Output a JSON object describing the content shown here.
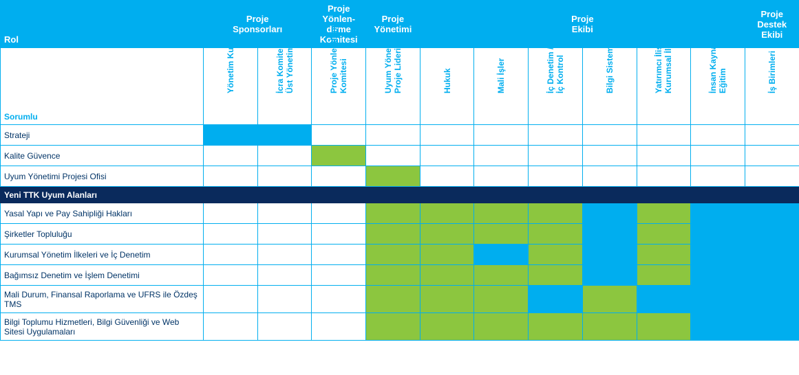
{
  "colors": {
    "header_bg": "#00aeef",
    "header_fg": "#ffffff",
    "subheader_fg": "#00aeef",
    "border": "#00aeef",
    "section_bg": "#0a2a5c",
    "section_fg": "#ffffff",
    "body_fg": "#003366",
    "fill_blue": "#00aeef",
    "fill_green": "#8cc63f",
    "fill_none": "#ffffff"
  },
  "header": {
    "rol": "Rol",
    "groups": [
      {
        "label": "Proje\nSponsorları",
        "span": 2
      },
      {
        "label": "Proje\nYönlen-\ndirme\nKomitesi",
        "span": 1
      },
      {
        "label": "Proje\nYönetimi",
        "span": 1
      },
      {
        "label": "Proje\nEkibi",
        "span": 6
      },
      {
        "label": "Proje\nDestek\nEkibi",
        "span": 1
      }
    ],
    "sorumlu": "Sorumlu",
    "columns": [
      "Yönetim Kurulu",
      "İcra Komitesi /\nÜst Yönetim",
      "Proje Yönlendirme\nKomitesi",
      "Uyum Yönetimi\nProje Lideri",
      "Hukuk",
      "Mali İşler",
      "İç Denetim /\nİç Kontrol",
      "Bilgi Sistemleri",
      "Yatırımcı İlişkileri/\nKurumsal İletişim",
      "İnsan Kaynakları/\nEğitim",
      "İş Birimleri"
    ]
  },
  "rows": [
    {
      "label": "Strateji",
      "cells": [
        "blue",
        "blue",
        "",
        "",
        "",
        "",
        "",
        "",
        "",
        "",
        ""
      ]
    },
    {
      "label": "Kalite Güvence",
      "cells": [
        "",
        "",
        "green",
        "",
        "",
        "",
        "",
        "",
        "",
        "",
        ""
      ]
    },
    {
      "label": "Uyum Yönetimi Projesi Ofisi",
      "cells": [
        "",
        "",
        "",
        "green",
        "",
        "",
        "",
        "",
        "",
        "",
        ""
      ]
    }
  ],
  "section_label": "Yeni TTK Uyum Alanları",
  "rows2": [
    {
      "label": "Yasal Yapı ve Pay Sahipliği Hakları",
      "cells": [
        "",
        "",
        "",
        "green",
        "green",
        "green",
        "green",
        "blue",
        "green",
        "blue",
        "blue"
      ]
    },
    {
      "label": "Şirketler Topluluğu",
      "cells": [
        "",
        "",
        "",
        "green",
        "green",
        "green",
        "green",
        "blue",
        "green",
        "blue",
        "blue"
      ]
    },
    {
      "label": "Kurumsal Yönetim İlkeleri ve İç Denetim",
      "cells": [
        "",
        "",
        "",
        "green",
        "green",
        "blue",
        "green",
        "blue",
        "green",
        "blue",
        "blue"
      ]
    },
    {
      "label": "Bağımsız Denetim ve İşlem Denetimi",
      "cells": [
        "",
        "",
        "",
        "green",
        "green",
        "green",
        "green",
        "blue",
        "green",
        "blue",
        "blue"
      ]
    },
    {
      "label": "Mali Durum, Finansal Raporlama ve UFRS ile Özdeş TMS",
      "cells": [
        "",
        "",
        "",
        "green",
        "green",
        "green",
        "blue",
        "green",
        "blue",
        "blue",
        "blue"
      ],
      "tall": true
    },
    {
      "label": "Bilgi Toplumu Hizmetleri, Bilgi Güvenliği ve Web Sitesi Uygulamaları",
      "cells": [
        "",
        "",
        "",
        "green",
        "green",
        "green",
        "green",
        "green",
        "green",
        "blue",
        "blue"
      ],
      "tall": true
    }
  ]
}
